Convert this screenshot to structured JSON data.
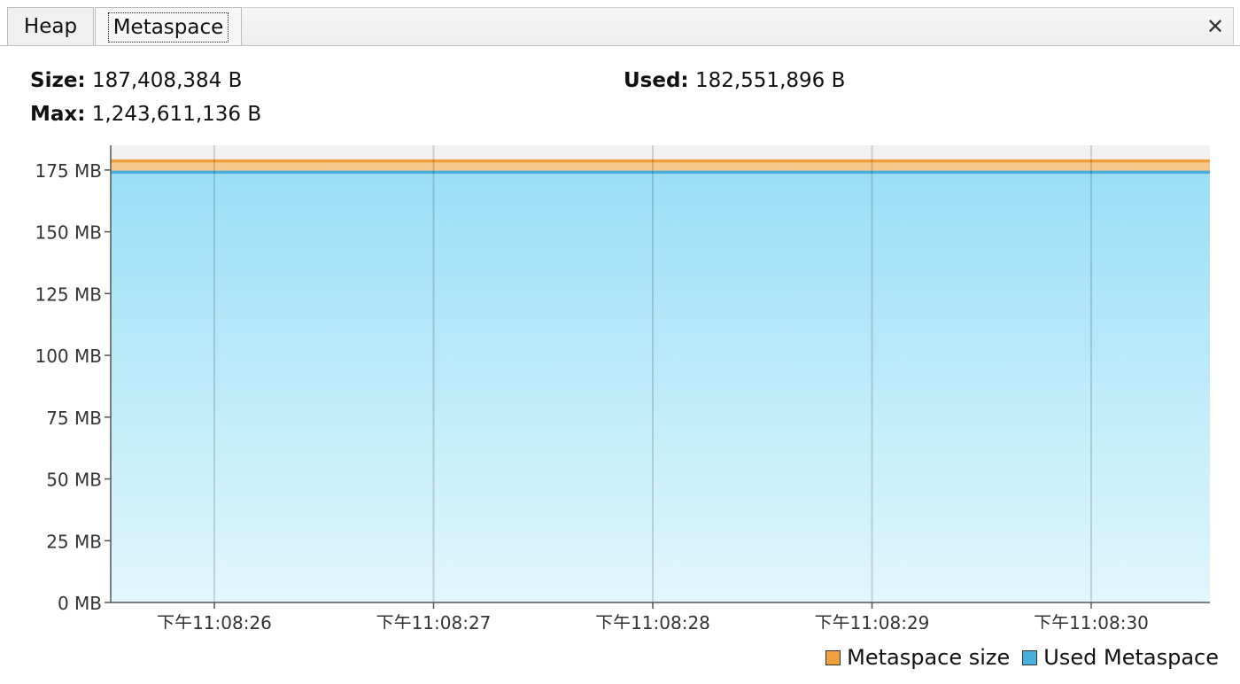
{
  "tabs": [
    {
      "label": "Heap",
      "selected": false
    },
    {
      "label": "Metaspace",
      "selected": true
    }
  ],
  "close_icon": "close-icon",
  "stats": {
    "size_label": "Size:",
    "size_value": "187,408,384 B",
    "max_label": "Max:",
    "max_value": "1,243,611,136 B",
    "used_label": "Used:",
    "used_value": "182,551,896 B"
  },
  "chart_data": {
    "type": "area",
    "x": [
      "下午11:08:26",
      "下午11:08:27",
      "下午11:08:28",
      "下午11:08:29",
      "下午11:08:30"
    ],
    "y_ticks": [
      "0 MB",
      "25 MB",
      "50 MB",
      "75 MB",
      "100 MB",
      "125 MB",
      "150 MB",
      "175 MB"
    ],
    "ylim": [
      0,
      185
    ],
    "grid": true,
    "legend_position": "bottom-right",
    "series": [
      {
        "name": "Metaspace size",
        "value_mb": 178.7,
        "color": "#f0a040"
      },
      {
        "name": "Used Metaspace",
        "value_mb": 174.1,
        "color": "#4aaedb"
      }
    ]
  }
}
